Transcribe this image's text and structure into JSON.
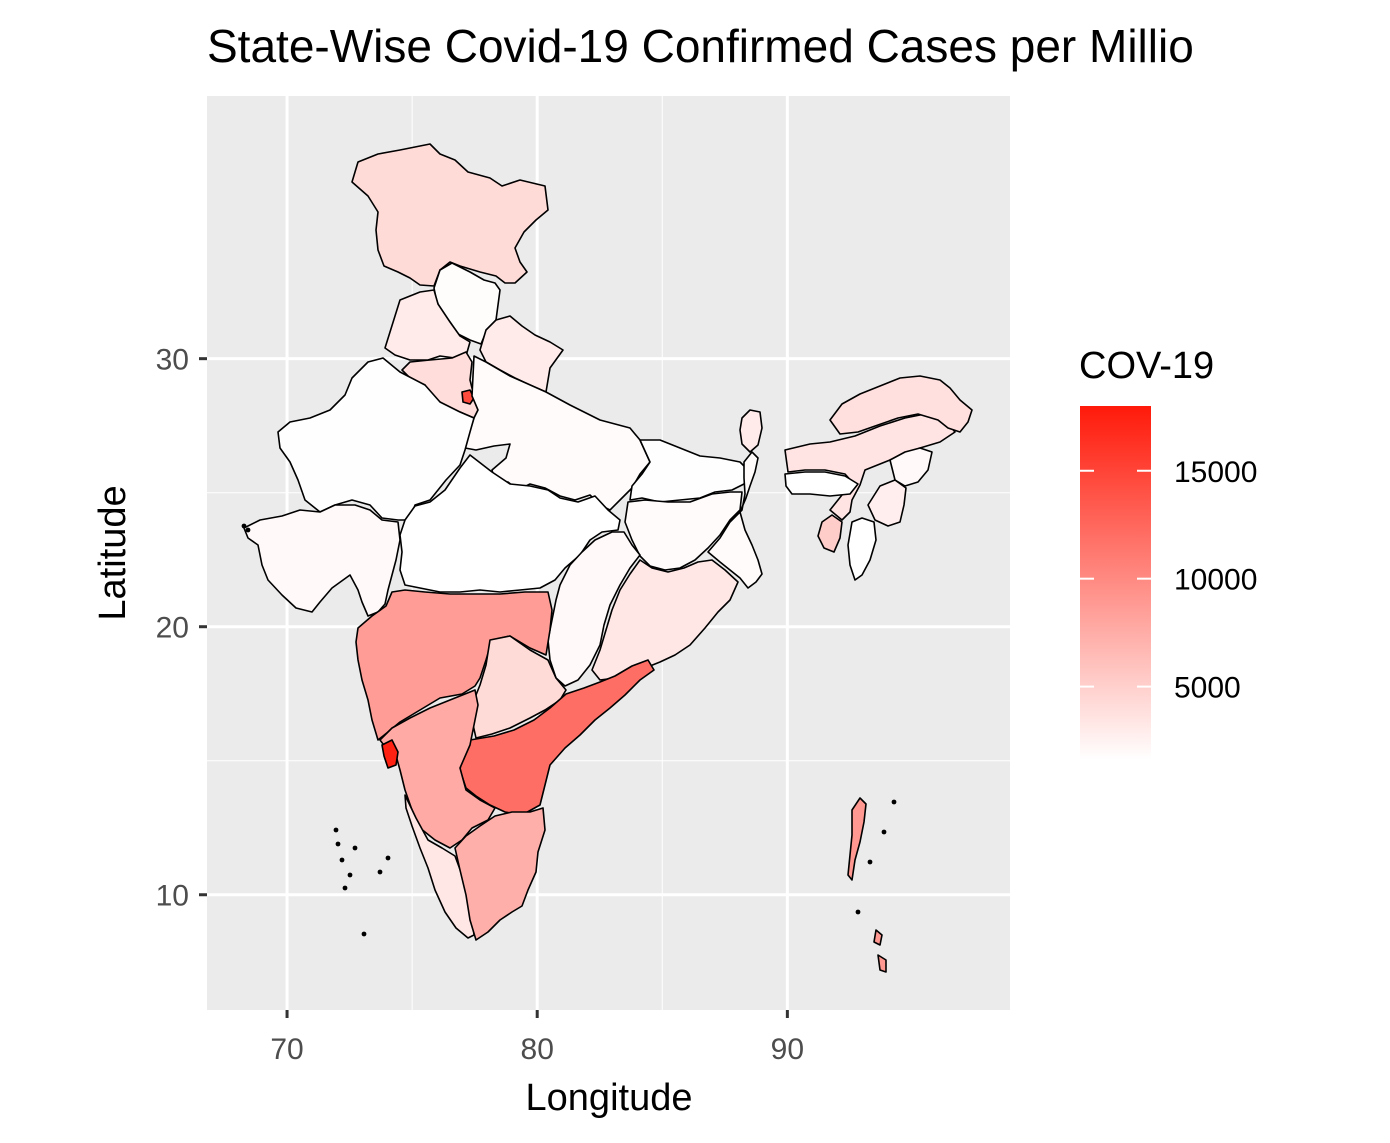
{
  "title": "State-Wise Covid-19 Confirmed Cases per Millio",
  "xlabel": "Longitude",
  "ylabel": "Latitude",
  "x_ticks": [
    70,
    80,
    90
  ],
  "y_ticks": [
    10,
    20,
    30
  ],
  "x_range": [
    66.8,
    98.9
  ],
  "y_range": [
    5.7,
    39.8
  ],
  "legend": {
    "title": "COV-19",
    "labels": [
      15000,
      10000,
      5000
    ],
    "min_value": 1600,
    "max_value": 18000,
    "color_low": "#ffffff",
    "color_high": "#ff1a0a"
  },
  "panel_background": "#ebebeb",
  "grid_color": "#ffffff",
  "chart_data": {
    "type": "choropleth",
    "fill_variable": "COV-19",
    "regions": [
      {
        "id": "jammu-kashmir",
        "value": 4200
      },
      {
        "id": "himachal-pradesh",
        "value": 1800
      },
      {
        "id": "punjab",
        "value": 3000
      },
      {
        "id": "haryana",
        "value": 4000
      },
      {
        "id": "delhi",
        "value": 14500
      },
      {
        "id": "uttarakhand",
        "value": 3000
      },
      {
        "id": "uttar-pradesh",
        "value": 1900
      },
      {
        "id": "rajasthan",
        "value": 1700
      },
      {
        "id": "gujarat",
        "value": 2000
      },
      {
        "id": "madhya-pradesh",
        "value": 1600
      },
      {
        "id": "bihar",
        "value": 1700
      },
      {
        "id": "jharkhand",
        "value": 1900
      },
      {
        "id": "west-bengal",
        "value": 1900
      },
      {
        "id": "chhattisgarh",
        "value": 2000
      },
      {
        "id": "odisha",
        "value": 3300
      },
      {
        "id": "maharashtra",
        "value": 8700
      },
      {
        "id": "telangana",
        "value": 4200
      },
      {
        "id": "andhra-pradesh",
        "value": 12000
      },
      {
        "id": "karnataka",
        "value": 7700
      },
      {
        "id": "goa",
        "value": 17500
      },
      {
        "id": "kerala",
        "value": 3300
      },
      {
        "id": "tamil-nadu",
        "value": 7300
      },
      {
        "id": "sikkim",
        "value": 3000
      },
      {
        "id": "assam",
        "value": 3500
      },
      {
        "id": "arunachal-pradesh",
        "value": 3800
      },
      {
        "id": "nagaland",
        "value": 2000
      },
      {
        "id": "manipur",
        "value": 2800
      },
      {
        "id": "mizoram",
        "value": 1600
      },
      {
        "id": "tripura",
        "value": 5200
      },
      {
        "id": "meghalaya",
        "value": 1600
      },
      {
        "id": "andaman-nicobar",
        "value": 9000
      }
    ]
  }
}
